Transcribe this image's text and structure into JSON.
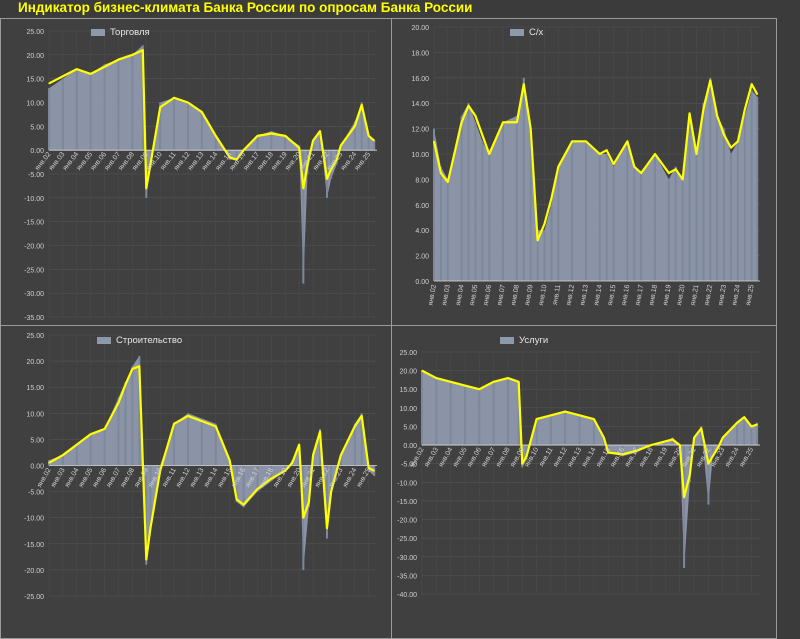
{
  "title": "Индикатор бизнес-климата Банка России по опросам Банка России",
  "colors": {
    "bar": "#8f99ac",
    "line": "#ffff00",
    "background": "#404040",
    "grid": "#555555",
    "axis_text": "#cfcfcf"
  },
  "chart_data": [
    {
      "type": "bar",
      "overlay": "line",
      "legend": "Торговля",
      "legend_position": "top-left",
      "ylim": [
        -35,
        25
      ],
      "yticks": [
        "25.00",
        "20.00",
        "15.00",
        "10.00",
        "5.00",
        "0.00",
        "-5.00",
        "-10.00",
        "-15.00",
        "-20.00",
        "-25.00",
        "-30.00",
        "-35.00"
      ],
      "xticks": [
        "янв.02",
        "янв.03",
        "янв.04",
        "янв.05",
        "янв.06",
        "янв.07",
        "янв.08",
        "янв.09",
        "янв.10",
        "янв.11",
        "янв.12",
        "янв.13",
        "янв.14",
        "янв.15",
        "янв.16",
        "янв.17",
        "янв.18",
        "янв.19",
        "янв.20",
        "янв.21",
        "янв.22",
        "янв.23",
        "янв.24",
        "янв.25"
      ],
      "x": [
        2002,
        2003,
        2004,
        2005,
        2006,
        2007,
        2008,
        2008.75,
        2009,
        2009.3,
        2010,
        2011,
        2012,
        2013,
        2014,
        2015,
        2015.5,
        2016,
        2017,
        2018,
        2019,
        2020,
        2020.3,
        2020.6,
        2021,
        2021.5,
        2022,
        2022.3,
        2022.7,
        2023,
        2024,
        2024.5,
        2025,
        2025.4
      ],
      "bars": [
        13,
        15,
        17,
        16,
        18,
        19,
        20,
        22,
        -10,
        -3,
        10,
        11,
        10,
        8,
        3,
        -2,
        -2,
        0,
        3,
        4,
        3,
        1,
        -28,
        -5,
        2,
        4,
        -10,
        -6,
        -3,
        1,
        6,
        10,
        3,
        2
      ],
      "line": [
        14,
        15.5,
        17,
        16,
        17.5,
        19,
        20,
        21,
        -8,
        -3,
        9,
        11,
        10,
        8,
        3,
        -1.5,
        -2,
        0,
        3,
        3.5,
        3,
        0.5,
        -8,
        -3,
        2,
        4,
        -6,
        -4,
        -2,
        1,
        5,
        9.5,
        3,
        2
      ]
    },
    {
      "type": "bar",
      "overlay": "line",
      "legend": "С/х",
      "legend_position": "top-left",
      "ylim": [
        0,
        20
      ],
      "yticks": [
        "20.00",
        "18.00",
        "16.00",
        "14.00",
        "12.00",
        "10.00",
        "8.00",
        "6.00",
        "4.00",
        "2.00",
        "0.00"
      ],
      "xticks": [
        "янв.02",
        "янв.03",
        "янв.04",
        "янв.05",
        "янв.06",
        "янв.07",
        "янв.08",
        "янв.09",
        "янв.10",
        "янв.11",
        "янв.12",
        "янв.13",
        "янв.14",
        "янв.15",
        "янв.16",
        "янв.17",
        "янв.18",
        "янв.19",
        "янв.20",
        "янв.21",
        "янв.22",
        "янв.23",
        "янв.24",
        "янв.25"
      ],
      "x": [
        2002,
        2002.5,
        2003,
        2004,
        2004.5,
        2005,
        2005.5,
        2006,
        2007,
        2008,
        2008.5,
        2009,
        2009.5,
        2010,
        2010.5,
        2011,
        2012,
        2013,
        2014,
        2014.5,
        2015,
        2016,
        2016.5,
        2017,
        2018,
        2019,
        2019.5,
        2020,
        2020.5,
        2021,
        2021.5,
        2022,
        2022.5,
        2023,
        2023.5,
        2024,
        2024.5,
        2025,
        2025.4
      ],
      "bars": [
        12,
        9,
        8,
        13,
        14,
        12.5,
        11,
        10,
        12.5,
        13,
        16,
        12,
        4,
        4,
        6,
        9,
        11,
        11,
        10,
        10,
        9,
        11,
        9,
        8.5,
        10,
        8,
        9,
        8,
        13,
        10,
        14,
        16,
        13,
        12,
        10,
        11,
        13,
        15,
        14.5
      ],
      "line": [
        11,
        8.5,
        7.8,
        12.5,
        13.8,
        13,
        11.5,
        10,
        12.5,
        12.5,
        15.5,
        12,
        3.2,
        4.5,
        6.5,
        9,
        11,
        11,
        10,
        10.3,
        9.2,
        11,
        9,
        8.5,
        10,
        8.5,
        8.8,
        8,
        13.2,
        10,
        13.5,
        15.8,
        13,
        11.5,
        10.5,
        11,
        13.5,
        15.5,
        14.7
      ]
    },
    {
      "type": "bar",
      "overlay": "line",
      "legend": "Строительство",
      "legend_position": "top-left",
      "ylim": [
        -25,
        25
      ],
      "yticks": [
        "25.00",
        "20.00",
        "15.00",
        "10.00",
        "5.00",
        "0.00",
        "-5.00",
        "-10.00",
        "-15.00",
        "-20.00",
        "-25.00"
      ],
      "xticks": [
        "янв.02",
        "янв.03",
        "янв.04",
        "янв.05",
        "янв.06",
        "янв.07",
        "янв.08",
        "янв.09",
        "янв.10",
        "янв.11",
        "янв.12",
        "янв.13",
        "янв.14",
        "янв.15",
        "янв.16",
        "янв.17",
        "янв.18",
        "янв.19",
        "янв.20",
        "янв.21",
        "янв.22",
        "янв.23",
        "янв.24",
        "янв.25"
      ],
      "x": [
        2002,
        2003,
        2004,
        2005,
        2006,
        2007,
        2007.5,
        2008,
        2008.5,
        2009,
        2009.3,
        2010,
        2011,
        2012,
        2013,
        2014,
        2015,
        2015.5,
        2016,
        2017,
        2018,
        2019,
        2019.5,
        2020,
        2020.3,
        2020.7,
        2021,
        2021.5,
        2022,
        2022.3,
        2022.7,
        2023,
        2024,
        2024.5,
        2025,
        2025.4
      ],
      "bars": [
        1,
        2,
        4,
        6,
        7,
        13,
        16,
        19,
        21,
        -19,
        -12,
        0,
        8,
        10,
        9,
        8,
        1,
        -7,
        -8,
        -5,
        -3,
        -1,
        1,
        4,
        -20,
        -8,
        2,
        7,
        -14,
        -5,
        -1,
        2,
        8,
        10,
        -1,
        -2
      ],
      "line": [
        0.5,
        2,
        4,
        6,
        7,
        12,
        15.5,
        18.5,
        19,
        -18,
        -12,
        -1,
        8,
        9.5,
        8.5,
        7.5,
        1,
        -6.5,
        -7.5,
        -4.5,
        -2.5,
        -1,
        0.5,
        4,
        -10,
        -7,
        2,
        6.5,
        -12,
        -5,
        -1,
        2,
        7.5,
        9.5,
        -0.5,
        -1
      ]
    },
    {
      "type": "bar",
      "overlay": "line",
      "legend": "Услуги",
      "legend_position": "top-left",
      "ylim": [
        -40,
        25
      ],
      "yticks": [
        "25.00",
        "20.00",
        "15.00",
        "10.00",
        "5.00",
        "0.00",
        "-5.00",
        "-10.00",
        "-15.00",
        "-20.00",
        "-25.00",
        "-30.00",
        "-35.00",
        "-40.00"
      ],
      "xticks": [
        "янв.02",
        "янв.03",
        "янв.04",
        "янв.05",
        "янв.06",
        "янв.07",
        "янв.08",
        "янв.09",
        "янв.10",
        "янв.11",
        "янв.12",
        "янв.13",
        "янв.14",
        "янв.15",
        "янв.16",
        "янв.17",
        "янв.18",
        "янв.19",
        "янв.20",
        "янв.21",
        "янв.22",
        "янв.23",
        "янв.24",
        "янв.25"
      ],
      "x": [
        2002,
        2003,
        2004,
        2005,
        2006,
        2007,
        2008,
        2008.75,
        2009,
        2009.3,
        2010,
        2011,
        2012,
        2013,
        2014,
        2014.7,
        2015,
        2016,
        2017,
        2018,
        2019,
        2019.5,
        2020,
        2020.3,
        2020.7,
        2021,
        2021.5,
        2022,
        2022.3,
        2022.7,
        2023,
        2024,
        2024.5,
        2025,
        2025.4
      ],
      "bars": [
        20,
        18,
        17,
        16,
        15,
        17,
        18,
        17,
        -6,
        -4,
        7,
        8,
        9,
        8,
        7,
        2,
        -2,
        -3,
        -2,
        0,
        1,
        2,
        0,
        -33,
        -10,
        2,
        5,
        -16,
        -3,
        -1,
        2,
        6,
        7,
        5,
        6
      ],
      "line": [
        20,
        18,
        17,
        16,
        15,
        17,
        18,
        17,
        -5,
        -3,
        7,
        8,
        9,
        8,
        7,
        2,
        -2,
        -2.5,
        -1.5,
        0,
        1,
        1.5,
        0,
        -14,
        -8,
        2,
        4.5,
        -5,
        -3,
        -0.5,
        2,
        6,
        7.5,
        5,
        5.5
      ]
    }
  ]
}
